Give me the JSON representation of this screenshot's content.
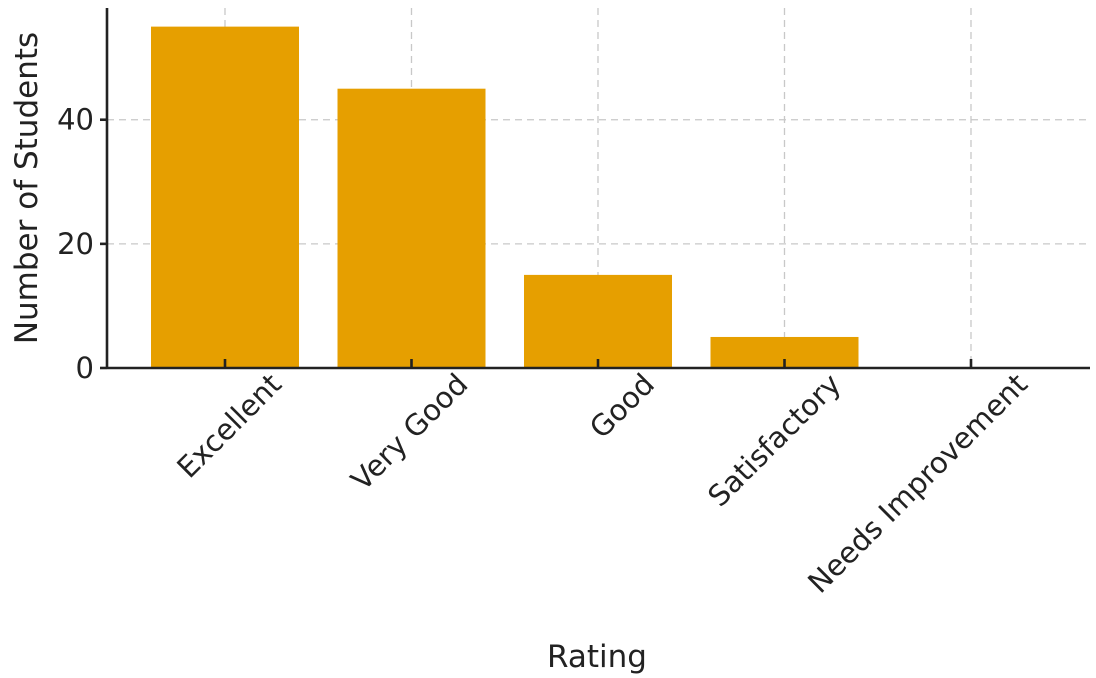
{
  "chart_data": {
    "type": "bar",
    "title": "",
    "xlabel": "Rating",
    "ylabel": "Number of Students",
    "categories": [
      "Excellent",
      "Very Good",
      "Good",
      "Satisfactory",
      "Needs Improvement"
    ],
    "values": [
      55,
      45,
      15,
      5,
      0
    ],
    "ylim": [
      0,
      58
    ],
    "yticks": [
      0,
      20,
      40
    ],
    "grid": true,
    "legend": "none",
    "bar_color": "#E69F00"
  }
}
